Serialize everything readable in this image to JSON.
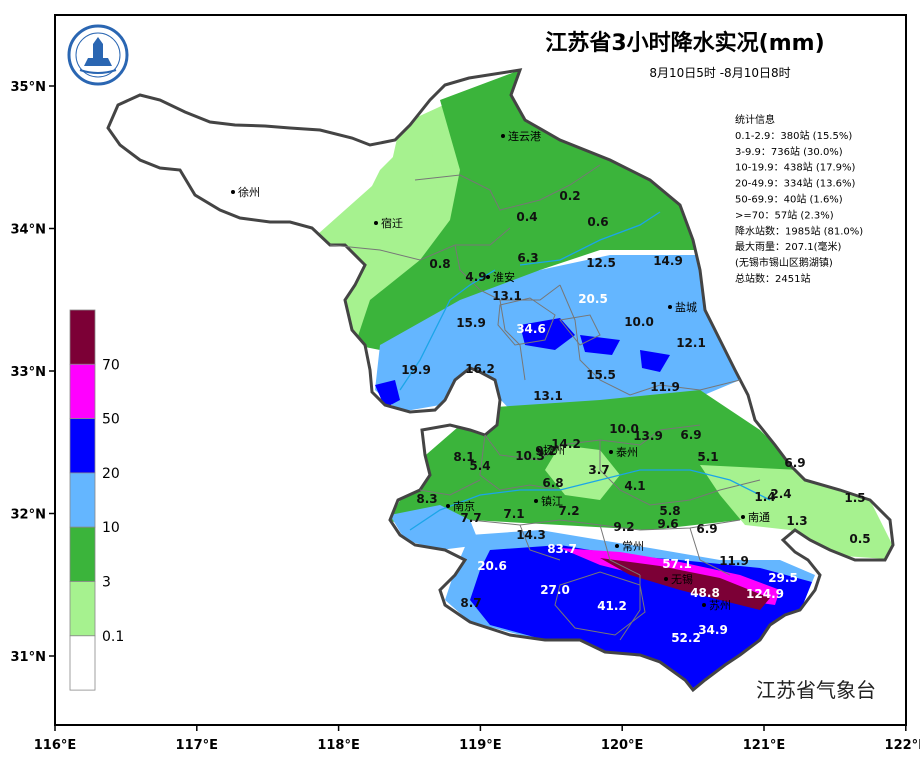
{
  "map": {
    "title": "江苏省3小时降水实况(mm)",
    "subtitle": "8月10日5时 -8月10日8时",
    "issuer": "江苏省气象台",
    "logo_icon": "meteorological-service-logo",
    "x_ticks": [
      "116°E",
      "117°E",
      "118°E",
      "119°E",
      "120°E",
      "121°E",
      "122°E"
    ],
    "y_ticks": [
      "35°N",
      "34°N",
      "33°N",
      "32°N",
      "31°N"
    ],
    "stats": [
      "统计信息",
      "0.1-2.9：380站 (15.5%)",
      "3-9.9：736站 (30.0%)",
      "10-19.9：438站 (17.9%)",
      "20-49.9：334站 (13.6%)",
      "50-69.9：40站 (1.6%)",
      ">=70：57站 (2.3%)",
      "降水站数：1985站 (81.0%)",
      "最大雨量：207.1(毫米)",
      "(无锡市锡山区鹅湖镇)",
      "总站数：2451站"
    ],
    "legend": [
      {
        "label": "70",
        "color": "#7c0036"
      },
      {
        "label": "50",
        "color": "#ff00ff"
      },
      {
        "label": "20",
        "color": "#0000ff"
      },
      {
        "label": "10",
        "color": "#64b6ff"
      },
      {
        "label": "3",
        "color": "#3bb43b"
      },
      {
        "label": "0.1",
        "color": "#a6f28f"
      },
      {
        "label": "",
        "color": "#ffffff"
      }
    ],
    "cities": [
      "连云港",
      "徐州",
      "宿迁",
      "淮安",
      "盐城",
      "扬州",
      "泰州",
      "南京",
      "镇江",
      "南通",
      "常州",
      "无锡",
      "苏州"
    ],
    "values": [
      "0.2",
      "0.4",
      "0.6",
      "0.8",
      "6.3",
      "4.9",
      "12.5",
      "14.9",
      "13.1",
      "20.5",
      "15.9",
      "34.6",
      "10.0",
      "12.1",
      "19.9",
      "16.2",
      "15.5",
      "11.9",
      "13.1",
      "10.0",
      "13.9",
      "6.9",
      "8.1",
      "9.2",
      "14.2",
      "5.4",
      "10.3",
      "5.1",
      "6.9",
      "3.7",
      "6.8",
      "4.1",
      "1.4",
      "2.4",
      "1.5",
      "8.3",
      "7.7",
      "7.1",
      "7.2",
      "5.8",
      "9.6",
      "1.3",
      "6.9",
      "9.2",
      "0.5",
      "14.3",
      "83.7",
      "20.6",
      "57.1",
      "11.9",
      "29.5",
      "27.0",
      "48.8",
      "124.9",
      "8.7",
      "41.2",
      "34.9",
      "52.2"
    ]
  }
}
